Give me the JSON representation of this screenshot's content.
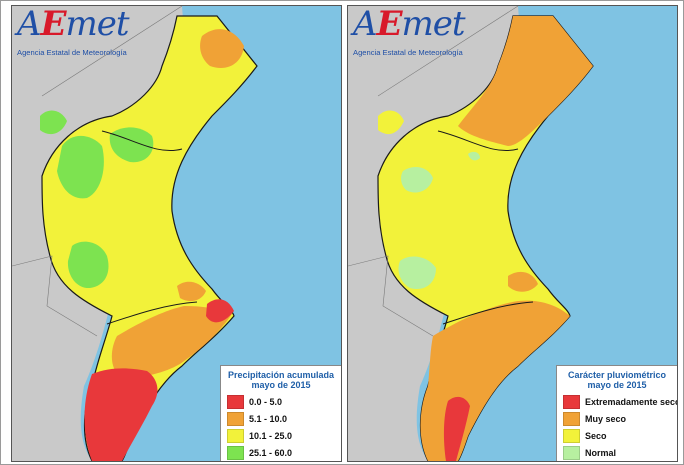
{
  "logo": {
    "brand_a": "A",
    "brand_e": "E",
    "brand_met": "met",
    "agency": "Agencia Estatal de Meteorología"
  },
  "maps": [
    {
      "legend_title_1": "Precipitación acumulada",
      "legend_title_2": "mayo de 2015",
      "legend": [
        {
          "label": "0.0 - 5.0",
          "color": "#e8383b"
        },
        {
          "label": "5.1 - 10.0",
          "color": "#f0a236"
        },
        {
          "label": "10.1 - 25.0",
          "color": "#f2f23a"
        },
        {
          "label": "25.1 - 60.0",
          "color": "#7de350"
        }
      ]
    },
    {
      "legend_title_1": "Carácter pluviométrico",
      "legend_title_2": "mayo de 2015",
      "legend": [
        {
          "label": "Extremadamente seco",
          "color": "#e8383b"
        },
        {
          "label": "Muy seco",
          "color": "#f0a236"
        },
        {
          "label": "Seco",
          "color": "#f2f23a"
        },
        {
          "label": "Normal",
          "color": "#b7f0a0"
        }
      ]
    }
  ],
  "colors": {
    "sea": "#7fc3e3",
    "land": "#c9c9c9",
    "border": "#1a1a1a"
  }
}
